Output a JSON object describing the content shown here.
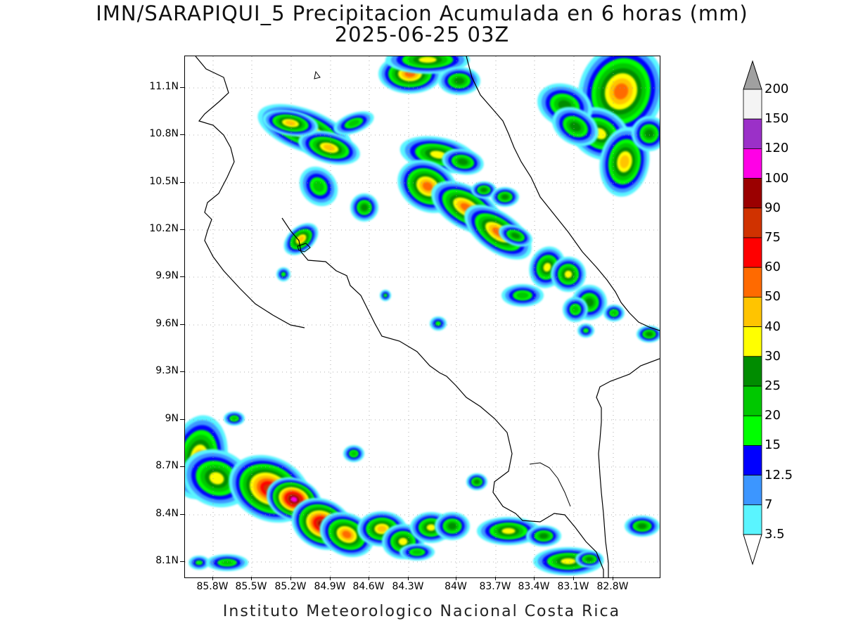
{
  "header": {
    "title": "IMN/SARAPIQUI_5 Precipitacion Acumulada en 6 horas (mm)",
    "subtitle": "2025-06-25 03Z"
  },
  "footer": {
    "credit": "Instituto Meteorologico Nacional Costa Rica"
  },
  "map": {
    "lat_labels": [
      "11.1N",
      "10.8N",
      "10.5N",
      "10.2N",
      "9.9N",
      "9.6N",
      "9.3N",
      "9N",
      "8.7N",
      "8.4N",
      "8.1N"
    ],
    "lon_labels": [
      "85.8W",
      "85.5W",
      "85.2W",
      "84.9W",
      "84.6W",
      "84.3W",
      "84W",
      "83.7W",
      "83.4W",
      "83.1W",
      "82.8W"
    ],
    "gridlines": true,
    "coastline_color": "#000000"
  },
  "colorbar": {
    "labels": [
      "200",
      "150",
      "120",
      "100",
      "90",
      "75",
      "60",
      "50",
      "40",
      "30",
      "25",
      "20",
      "15",
      "12.5",
      "7",
      "3.5"
    ],
    "colors": [
      "#a0a0a0",
      "#f4f4f4",
      "#9b30c8",
      "#ff00e6",
      "#9b0000",
      "#d03200",
      "#ff0000",
      "#ff6a00",
      "#ffc400",
      "#ffff00",
      "#008c00",
      "#00c800",
      "#00ff00",
      "#0000ff",
      "#3c96ff",
      "#5af5ff"
    ]
  },
  "palette": {
    "p35": "#5af5ff",
    "p7": "#3c96ff",
    "p125": "#0000ff",
    "p15": "#00ff00",
    "p20": "#00c800",
    "p25": "#008c00",
    "p30": "#ffff00",
    "p40": "#ffc400",
    "p50": "#ff6a00",
    "p60": "#ff0000",
    "p75": "#d03200",
    "p90": "#9b0000",
    "p100": "#ff00e6",
    "p120": "#9b30c8"
  }
}
